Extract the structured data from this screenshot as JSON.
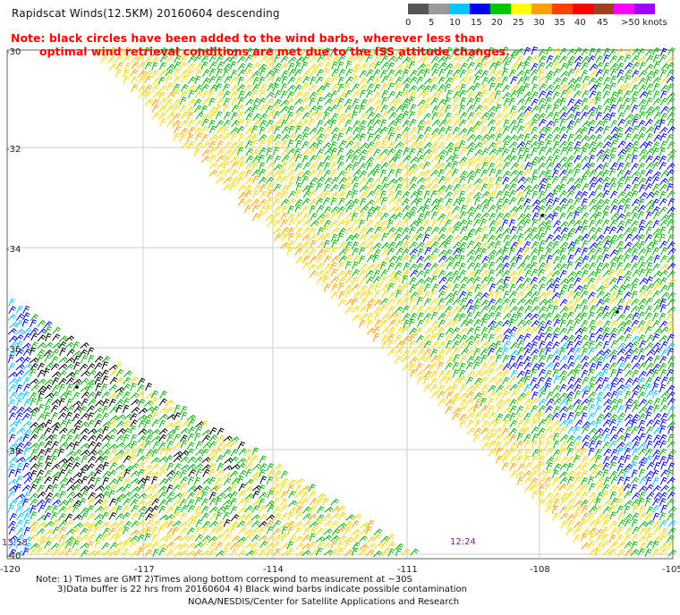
{
  "title": "Rapidscat Winds(12.5KM) 20160604 descending",
  "note_line1": "Note: black circles have been added to the wind barbs, wherever less than",
  "note_line2": "optimal wind retrieval conditions are met due to the ISS attitude changes.",
  "colorbar": {
    "labels": [
      "0",
      "5",
      "10",
      "15",
      "20",
      "25",
      "30",
      "35",
      "40",
      "45",
      ">50 knots"
    ],
    "colors": [
      "#555555",
      "#999999",
      "#00c8ff",
      "#0000ff",
      "#00c800",
      "#ffff00",
      "#ffa000",
      "#ff4000",
      "#ff0000",
      "#a04020",
      "#ff00ff",
      "#a000ff"
    ]
  },
  "map": {
    "lat_labels": [
      "-30",
      "-32",
      "-34",
      "-36",
      "-38",
      "-40"
    ],
    "lon_labels": [
      "-120",
      "-117",
      "-114",
      "-111",
      "-108",
      "-105"
    ],
    "time_labels": [
      "13:58",
      "12:24"
    ]
  },
  "footer": {
    "line1": "Note: 1) Times are GMT 2)Times along bottom correspond to measurement at ~30S",
    "line2": "3)Data buffer is 22 hrs from 20160604 4) Black wind barbs indicate possible contamination",
    "line3": "NOAA/NESDIS/Center for Satellite Applications and Research"
  }
}
